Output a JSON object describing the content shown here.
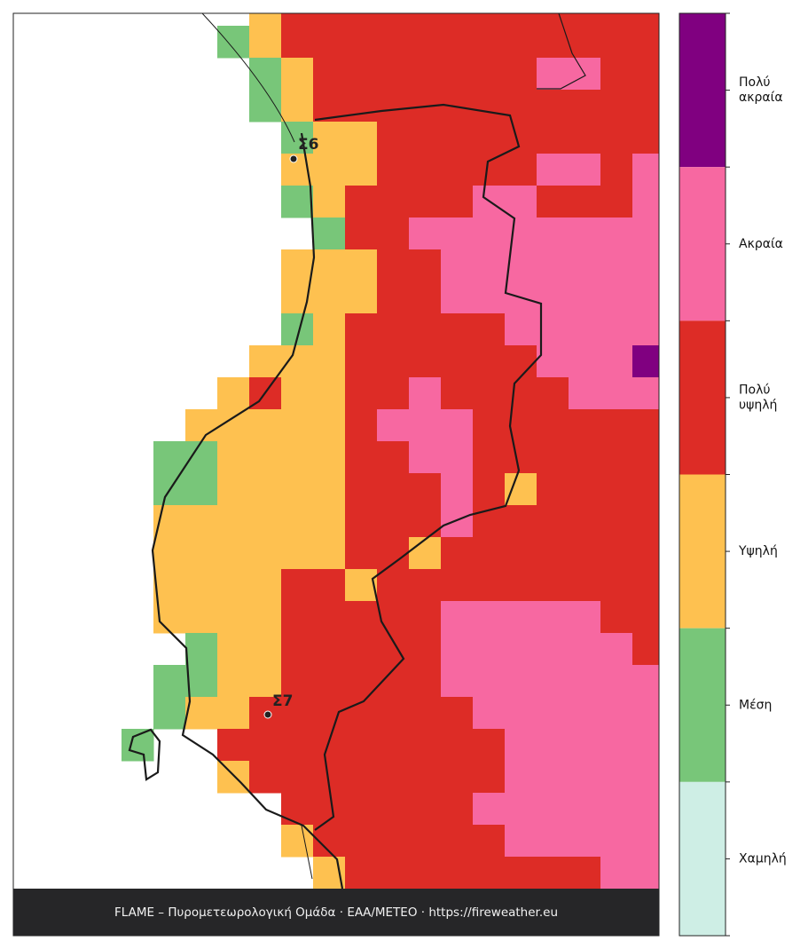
{
  "map": {
    "stations": [
      {
        "label": "Σ6"
      },
      {
        "label": "Σ7"
      }
    ],
    "footer": "FLAME – Πυρομετεωρολογική Ομάδα · ΕΑΑ/METEO · https://fireweather.eu",
    "legend": [
      {
        "lines": [
          "Πολύ",
          "ακραία"
        ],
        "color": "#800080"
      },
      {
        "lines": [
          "Ακραία"
        ],
        "color": "#f768a1"
      },
      {
        "lines": [
          "Πολύ",
          "υψηλή"
        ],
        "color": "#dd2c26"
      },
      {
        "lines": [
          "Υψηλή"
        ],
        "color": "#fec150"
      },
      {
        "lines": [
          "Μέση"
        ],
        "color": "#78c679"
      },
      {
        "lines": [
          "Χαμηλή"
        ],
        "color": "#ceeee5"
      }
    ]
  }
}
